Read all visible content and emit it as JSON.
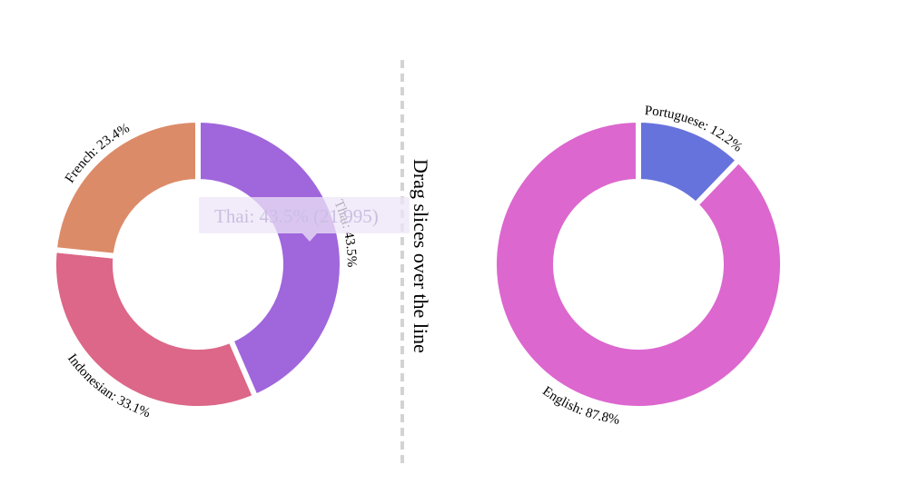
{
  "instruction": "Drag slices over the line",
  "tooltip": {
    "text": "Thai: 43.5% (21.995)"
  },
  "chart_data": [
    {
      "type": "pie",
      "variant": "donut",
      "slices": [
        {
          "name": "Thai",
          "value": 43.5,
          "label": "Thai: 43.5%",
          "color": "#a066dc"
        },
        {
          "name": "Indonesian",
          "value": 33.1,
          "label": "Indonesian: 33.1%",
          "color": "#dc6788"
        },
        {
          "name": "French",
          "value": 23.4,
          "label": "French: 23.4%",
          "color": "#dc8b68"
        }
      ]
    },
    {
      "type": "pie",
      "variant": "donut",
      "slices": [
        {
          "name": "Portuguese",
          "value": 12.2,
          "label": "Portuguese: 12.2%",
          "color": "#6773dc"
        },
        {
          "name": "English",
          "value": 87.8,
          "label": "English: 87.8%",
          "color": "#dc67ce"
        }
      ]
    }
  ],
  "colors": {
    "divider": "#d3d3d3",
    "tooltip_background": "#ede6f8"
  }
}
